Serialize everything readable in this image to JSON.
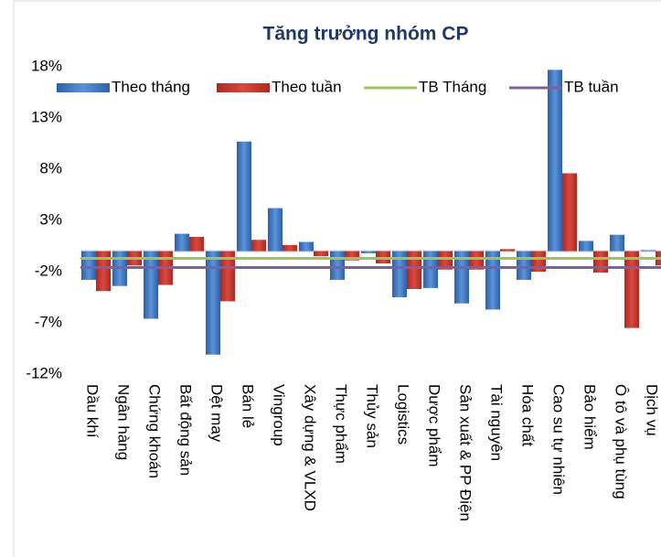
{
  "chart_data": {
    "type": "bar",
    "title": "Tăng trưởng nhóm CP",
    "categories": [
      "Dầu khí",
      "Ngân hàng",
      "Chứng khoán",
      "Bất động sản",
      "Dệt may",
      "Bán lẻ",
      "Vingroup",
      "Xây dựng & VLXD",
      "Thực phẩm",
      "Thủy sản",
      "Logistics",
      "Dược phẩm",
      "Sản xuất & PP Điện",
      "Tài nguyên",
      "Hóa chất",
      "Cao su tự nhiên",
      "Bảo hiểm",
      "Ô tô và phụ tùng",
      "Dịch vụ"
    ],
    "series": [
      {
        "name": "Theo tháng",
        "color": "#3a75c4",
        "values": [
          -2.8,
          -3.4,
          -6.6,
          1.7,
          -10.1,
          10.7,
          4.2,
          0.9,
          -2.8,
          -0.2,
          -4.5,
          -3.6,
          -5.1,
          -5.7,
          -2.8,
          17.7,
          1.0,
          1.6,
          0.1
        ]
      },
      {
        "name": "Theo tuần",
        "color": "#c0392b",
        "values": [
          -3.9,
          -1.4,
          -3.3,
          1.4,
          -4.9,
          1.1,
          0.6,
          -0.5,
          -0.9,
          -1.2,
          -3.7,
          -1.8,
          -1.8,
          0.2,
          -2.0,
          7.6,
          -2.1,
          -7.5,
          -1.4
        ]
      }
    ],
    "avg_lines": [
      {
        "name": "TB Tháng",
        "color": "#9bc45a",
        "value": -0.7
      },
      {
        "name": "TB tuần",
        "color": "#7e60a0",
        "value": -1.6
      }
    ],
    "ylim": [
      -12,
      18
    ],
    "yticks": [
      {
        "value": -12,
        "label": "-12%"
      },
      {
        "value": -7,
        "label": "-7%"
      },
      {
        "value": -2,
        "label": "-2%"
      },
      {
        "value": 3,
        "label": "3%"
      },
      {
        "value": 8,
        "label": "8%"
      },
      {
        "value": 13,
        "label": "13%"
      },
      {
        "value": 18,
        "label": "18%"
      }
    ]
  }
}
